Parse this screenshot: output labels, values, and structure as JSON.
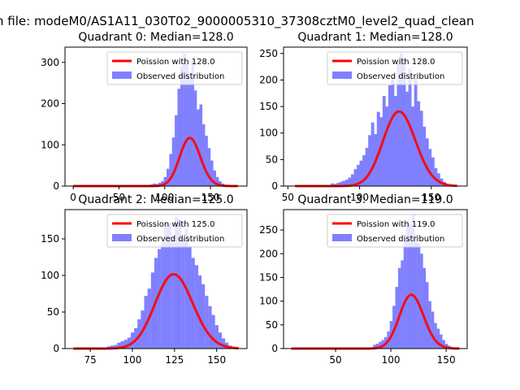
{
  "figure": {
    "suptitle": "n file: modeM0/AS1A11_030T02_9000005310_37308cztM0_level2_quad_clean"
  },
  "chart_data": [
    {
      "type": "bar",
      "title": "Quadrant 0: Median=128.0",
      "xlim": [
        -9,
        190
      ],
      "ylim": [
        0,
        337
      ],
      "xticks": [
        0,
        50,
        100,
        150
      ],
      "yticks": [
        0,
        100,
        200,
        300
      ],
      "legend": "top-right",
      "series": [
        {
          "name": "Poission with 128.0",
          "kind": "line",
          "color": "#ff0000",
          "median": 128,
          "x_range": [
            0,
            180
          ]
        },
        {
          "name": "Observed distribution",
          "kind": "histogram",
          "color": "#8080ff",
          "bin_width": 3.2,
          "x": [
            75,
            78,
            81,
            84,
            87,
            90,
            93,
            96,
            99,
            102,
            105,
            108,
            111,
            114,
            117,
            120,
            123,
            126,
            129,
            132,
            135,
            138,
            141,
            144,
            147,
            150,
            153,
            156,
            159,
            162,
            165,
            168
          ],
          "values": [
            2,
            3,
            2,
            4,
            6,
            5,
            8,
            12,
            22,
            42,
            78,
            118,
            172,
            236,
            290,
            322,
            298,
            260,
            306,
            232,
            186,
            198,
            150,
            122,
            92,
            62,
            38,
            22,
            12,
            6,
            3,
            2
          ]
        }
      ]
    },
    {
      "type": "bar",
      "title": "Quadrant 1: Median=128.0",
      "xlim": [
        47,
        175
      ],
      "ylim": [
        0,
        262
      ],
      "xticks": [
        50,
        100,
        150
      ],
      "yticks": [
        0,
        50,
        100,
        150,
        200,
        250
      ],
      "legend": "top-right",
      "series": [
        {
          "name": "Poission with 128.0",
          "kind": "line",
          "color": "#ff0000",
          "median": 128,
          "x_range": [
            55,
            168
          ]
        },
        {
          "name": "Observed distribution",
          "kind": "histogram",
          "color": "#8080ff",
          "bin_width": 2.2,
          "x": [
            80,
            82,
            84,
            86,
            88,
            90,
            92,
            94,
            96,
            98,
            100,
            102,
            104,
            106,
            108,
            110,
            112,
            114,
            116,
            118,
            120,
            122,
            124,
            126,
            128,
            130,
            132,
            134,
            136,
            138,
            140,
            142,
            144,
            146,
            148,
            150,
            152,
            154,
            156,
            158
          ],
          "values": [
            5,
            4,
            6,
            8,
            10,
            12,
            16,
            22,
            32,
            40,
            48,
            58,
            72,
            96,
            120,
            98,
            140,
            130,
            170,
            150,
            190,
            210,
            170,
            230,
            250,
            240,
            178,
            222,
            150,
            206,
            160,
            142,
            112,
            90,
            70,
            54,
            34,
            24,
            14,
            8
          ]
        }
      ]
    },
    {
      "type": "bar",
      "title": "Quadrant 2: Median=125.0",
      "xlim": [
        60,
        168
      ],
      "ylim": [
        0,
        190
      ],
      "xticks": [
        75,
        100,
        125,
        150
      ],
      "yticks": [
        0,
        50,
        100,
        150
      ],
      "legend": "top-right",
      "series": [
        {
          "name": "Poission with 125.0",
          "kind": "line",
          "color": "#ff0000",
          "median": 125,
          "x_range": [
            65,
            163
          ]
        },
        {
          "name": "Observed distribution",
          "kind": "histogram",
          "color": "#8080ff",
          "bin_width": 2.05,
          "x": [
            85,
            87,
            89,
            91,
            93,
            95,
            97,
            99,
            101,
            103,
            105,
            107,
            109,
            111,
            113,
            115,
            117,
            119,
            121,
            123,
            125,
            127,
            129,
            131,
            133,
            135,
            137,
            139,
            141,
            143,
            145,
            147,
            149,
            151,
            153,
            155,
            157,
            159
          ],
          "values": [
            3,
            4,
            5,
            8,
            10,
            12,
            15,
            22,
            28,
            40,
            52,
            72,
            82,
            104,
            124,
            136,
            146,
            166,
            172,
            154,
            180,
            176,
            150,
            164,
            140,
            124,
            114,
            100,
            88,
            72,
            58,
            46,
            32,
            22,
            14,
            8,
            4,
            2
          ]
        }
      ]
    },
    {
      "type": "bar",
      "title": "Quadrant 3: Median=119.0",
      "xlim": [
        3,
        169
      ],
      "ylim": [
        0,
        293
      ],
      "xticks": [
        50,
        100,
        150
      ],
      "yticks": [
        0,
        50,
        100,
        150,
        200,
        250
      ],
      "legend": "top-right",
      "series": [
        {
          "name": "Poission with 119.0",
          "kind": "line",
          "color": "#ff0000",
          "median": 119,
          "x_range": [
            10,
            162
          ]
        },
        {
          "name": "Observed distribution",
          "kind": "histogram",
          "color": "#8080ff",
          "bin_width": 2.6,
          "x": [
            84,
            86.5,
            89,
            91.5,
            94,
            96.5,
            99,
            101.5,
            104,
            106.5,
            109,
            111.5,
            114,
            116.5,
            119,
            121.5,
            124,
            126.5,
            129,
            131.5,
            134,
            136.5,
            139,
            141.5,
            144,
            146.5,
            149,
            151.5,
            154
          ],
          "values": [
            8,
            10,
            14,
            18,
            24,
            36,
            58,
            90,
            130,
            170,
            186,
            232,
            270,
            262,
            282,
            240,
            222,
            200,
            170,
            140,
            100,
            78,
            54,
            42,
            30,
            18,
            10,
            6,
            3
          ]
        }
      ]
    }
  ]
}
